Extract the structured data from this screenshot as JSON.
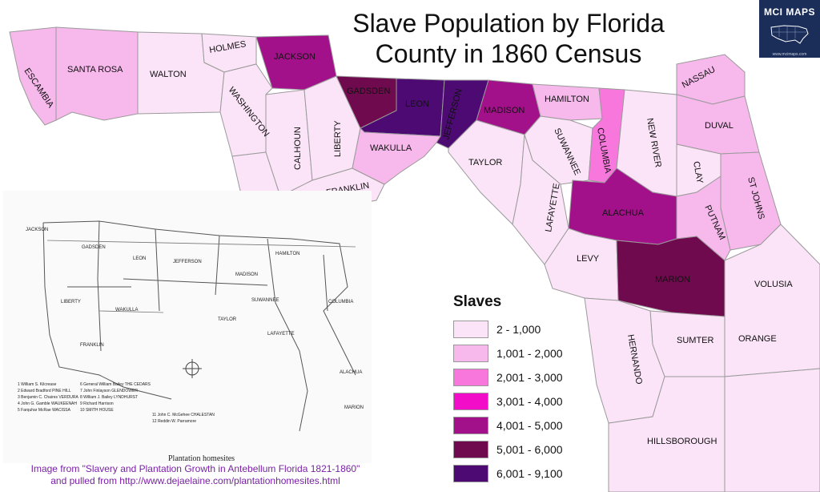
{
  "title": "Slave Population by Florida County in 1860 Census",
  "title_lines": [
    "Slave Population by Florida",
    "County in 1860 Census"
  ],
  "brand": {
    "name": "MCI MAPS",
    "url": "www.mcimaps.com",
    "icon": "usa-map-icon",
    "background": "#1b2e5a"
  },
  "legend": {
    "title": "Slaves",
    "bins": [
      {
        "label": "2 - 1,000",
        "color": "#fbe4f7"
      },
      {
        "label": "1,001 - 2,000",
        "color": "#f7b8ec"
      },
      {
        "label": "2,001 - 3,000",
        "color": "#f777dd"
      },
      {
        "label": "3,001 - 4,000",
        "color": "#f20ec8"
      },
      {
        "label": "4,001 - 5,000",
        "color": "#a3118a"
      },
      {
        "label": "5,001 - 6,000",
        "color": "#700a4e"
      },
      {
        "label": "6,001 - 9,100",
        "color": "#4c0a72"
      }
    ]
  },
  "counties": [
    {
      "name": "ESCAMBIA",
      "bin": 1
    },
    {
      "name": "SANTA ROSA",
      "bin": 1
    },
    {
      "name": "WALTON",
      "bin": 0
    },
    {
      "name": "HOLMES",
      "bin": 0
    },
    {
      "name": "WASHINGTON",
      "bin": 0
    },
    {
      "name": "JACKSON",
      "bin": 4
    },
    {
      "name": "CALHOUN",
      "bin": 0
    },
    {
      "name": "LIBERTY",
      "bin": 0
    },
    {
      "name": "FRANKLIN",
      "bin": 0
    },
    {
      "name": "GADSDEN",
      "bin": 5
    },
    {
      "name": "LEON",
      "bin": 6
    },
    {
      "name": "JEFFERSON",
      "bin": 6
    },
    {
      "name": "WAKULLA",
      "bin": 1
    },
    {
      "name": "MADISON",
      "bin": 4
    },
    {
      "name": "TAYLOR",
      "bin": 0
    },
    {
      "name": "HAMILTON",
      "bin": 1
    },
    {
      "name": "SUWANNEE",
      "bin": 0
    },
    {
      "name": "LAFAYETTE",
      "bin": 0
    },
    {
      "name": "COLUMBIA",
      "bin": 2
    },
    {
      "name": "NEW RIVER",
      "bin": 0
    },
    {
      "name": "NASSAU",
      "bin": 1
    },
    {
      "name": "DUVAL",
      "bin": 1
    },
    {
      "name": "CLAY",
      "bin": 0
    },
    {
      "name": "ST JOHNS",
      "bin": 1
    },
    {
      "name": "PUTNAM",
      "bin": 1
    },
    {
      "name": "ALACHUA",
      "bin": 4
    },
    {
      "name": "LEVY",
      "bin": 0
    },
    {
      "name": "MARION",
      "bin": 5
    },
    {
      "name": "VOLUSIA",
      "bin": 0
    },
    {
      "name": "SUMTER",
      "bin": 0
    },
    {
      "name": "ORANGE",
      "bin": 0
    },
    {
      "name": "HERNANDO",
      "bin": 0
    },
    {
      "name": "HILLSBOROUGH",
      "bin": 0
    }
  ],
  "inset": {
    "caption": "Plantation homesites",
    "county_labels": [
      "JACKSON",
      "GADSDEN",
      "LEON",
      "JEFFERSON",
      "MADISON",
      "HAMILTON",
      "COLUMBIA",
      "LIBERTY",
      "WAKULLA",
      "TAYLOR",
      "SUWANNEE",
      "LAFAYETTE",
      "FRANKLIN",
      "ALACHUA",
      "MARION"
    ],
    "key": [
      "1  William S. Kilcrease",
      "2  Edward Bradford PINE HILL",
      "3  Benjamin C. Chaires VERDURA",
      "4  John G. Gamble WAUKEENAH",
      "5  Farquhar McRae WACISSA",
      "6  General William Bailey THE CEDARS",
      "7  John Finlayson GLENDOWER",
      "8  William J. Bailey LYNDHURST",
      "9  Richard Harrison",
      "10  SMITH HOUSE",
      "11  John C. McGehee CHALESTAN",
      "12  Reddin W. Parramore"
    ]
  },
  "credit": [
    "Image from \"Slavery and Plantation Growth in Antebellum Florida 1821-1860\"",
    "and pulled from http://www.dejaelaine.com/plantationhomesites.html"
  ]
}
